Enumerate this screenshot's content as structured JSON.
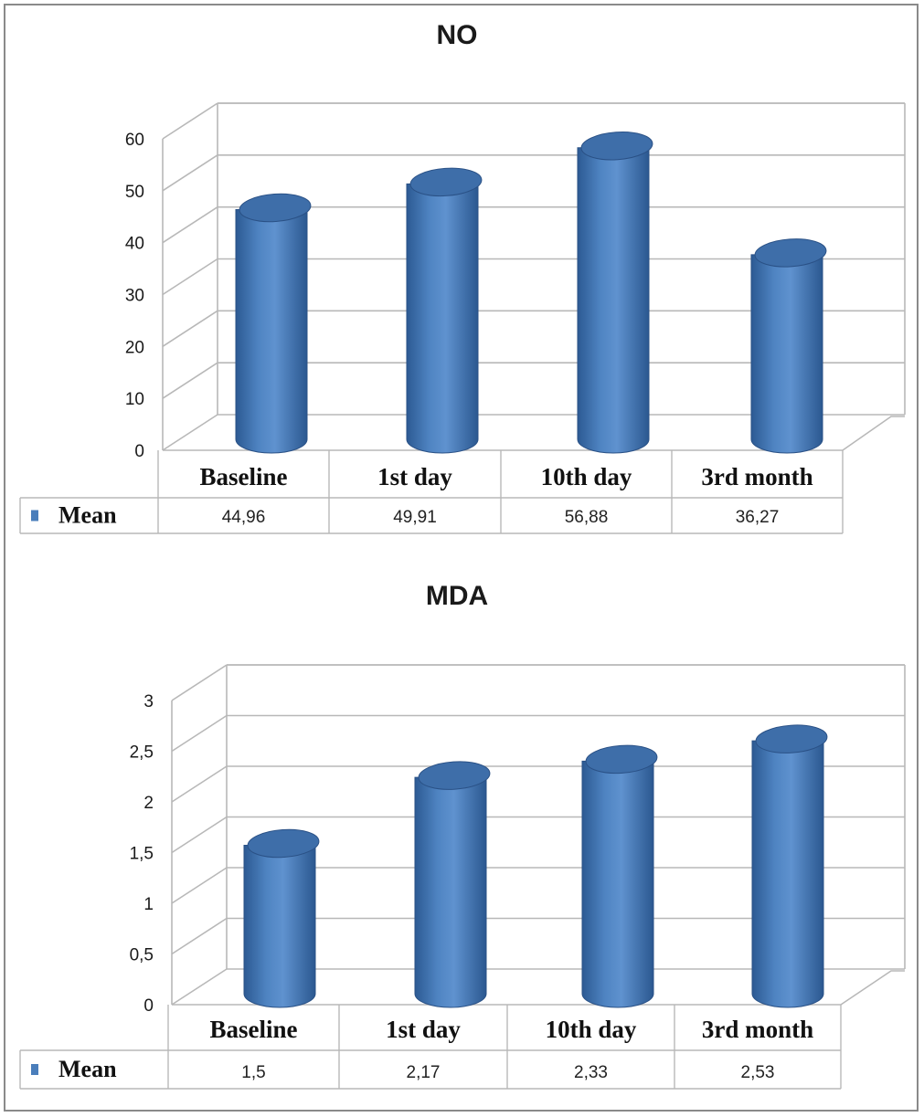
{
  "chart_data": [
    {
      "type": "bar",
      "title": "NO",
      "categories": [
        "Baseline",
        "1st day",
        "10th day",
        "3rd month"
      ],
      "series": [
        {
          "name": "Mean",
          "values": [
            44.96,
            49.91,
            56.88,
            36.27
          ]
        }
      ],
      "value_labels": [
        "44,96",
        "49,91",
        "56,88",
        "36,27"
      ],
      "ylim": [
        0,
        60
      ],
      "yticks": [
        "0",
        "10",
        "20",
        "30",
        "40",
        "50",
        "60"
      ],
      "grid": true,
      "legend": "data-table-left",
      "bar_color": "#4a7ebb"
    },
    {
      "type": "bar",
      "title": "MDA",
      "categories": [
        "Baseline",
        "1st day",
        "10th day",
        "3rd month"
      ],
      "series": [
        {
          "name": "Mean",
          "values": [
            1.5,
            2.17,
            2.33,
            2.53
          ]
        }
      ],
      "value_labels": [
        "1,5",
        "2,17",
        "2,33",
        "2,53"
      ],
      "ylim": [
        0,
        3
      ],
      "yticks": [
        "0",
        "0,5",
        "1",
        "1,5",
        "2",
        "2,5",
        "3"
      ],
      "grid": true,
      "legend": "data-table-left",
      "bar_color": "#4a7ebb"
    }
  ]
}
